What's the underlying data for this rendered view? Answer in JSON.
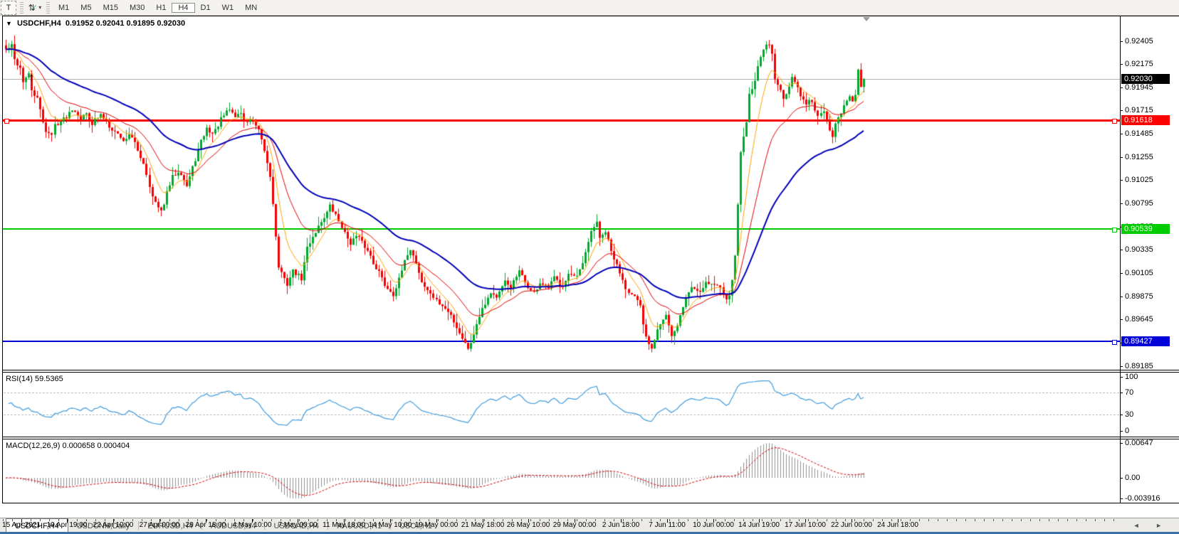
{
  "toolbar": {
    "text_tool_label": "T",
    "indicator_dropdown_icon": "arrows-with-check-icon",
    "timeframes": [
      "M1",
      "M5",
      "M15",
      "M30",
      "H1",
      "H4",
      "D1",
      "W1",
      "MN"
    ],
    "active_timeframe": "H4"
  },
  "chart": {
    "title_symbol": "USDCHF,H4",
    "ohlc": {
      "open": "0.91952",
      "high": "0.92041",
      "low": "0.91895",
      "close": "0.92030"
    },
    "current_price": "0.92030",
    "current_price_value": 0.9203,
    "hlines": [
      {
        "name": "resistance",
        "label": "0.91618",
        "value": 0.91618,
        "color": "#ff0000",
        "thickness": 3,
        "anchors": "left-right"
      },
      {
        "name": "pivot",
        "label": "0.90539",
        "value": 0.90539,
        "color": "#00cc00",
        "thickness": 2,
        "anchors": "right"
      },
      {
        "name": "support",
        "label": "0.89427",
        "value": 0.89427,
        "color": "#0000d8",
        "thickness": 2,
        "anchors": "right"
      }
    ],
    "annotations": [
      {
        "glyph": "↑",
        "bar": 10,
        "price": 0.9203
      }
    ]
  },
  "price_axis": {
    "ticks": [
      "0.92405",
      "0.92175",
      "0.91945",
      "0.91715",
      "0.91485",
      "0.91255",
      "0.91025",
      "0.90795",
      "0.90565",
      "0.90335",
      "0.90105",
      "0.89875",
      "0.89645",
      "0.89415",
      "0.89185"
    ]
  },
  "rsi_panel": {
    "label": "RSI(14) 59.5365",
    "value": "59.5365",
    "axis_ticks": [
      "100",
      "70",
      "30",
      "0"
    ],
    "levels": [
      70,
      30
    ],
    "line_color": "#3e9bde"
  },
  "macd_panel": {
    "label": "MACD(12,26,9) 0.000658 0.000404",
    "main_value": "0.000658",
    "signal_value": "0.000404",
    "axis_ticks": [
      "0.00647",
      "0.00",
      "-0.003916"
    ],
    "histogram_color": "#8f8f8f",
    "signal_color": "#d40000"
  },
  "time_axis": {
    "labels": [
      "15 Apr 2021",
      "19 Apr 19:00",
      "22 Apr 10:00",
      "27 Apr 00:00",
      "29 Apr 18:00",
      "4 May 10:00",
      "7 May 00:00",
      "11 May 18:00",
      "14 May 10:00",
      "19 May 00:00",
      "21 May 18:00",
      "26 May 10:00",
      "29 May 00:00",
      "2 Jun 18:00",
      "7 Jun 11:00",
      "10 Jun 00:00",
      "14 Jun 19:00",
      "17 Jun 10:00",
      "22 Jun 00:00",
      "24 Jun 18:00"
    ]
  },
  "tabs": {
    "items": [
      "USDCHF,H4",
      "USDCNH,Daily",
      "EURUSD,H4",
      "AUDUSD,H4",
      "USDCAD,H4",
      "XAUUSD,H1",
      "USOil,H1"
    ],
    "active": "USDCHF,H4",
    "scroll_left_icon": "◄",
    "scroll_right_icon": "►"
  },
  "chart_data": {
    "type": "candlestick",
    "symbol": "USDCHF",
    "timeframe": "H4",
    "bars": 300,
    "up_color": "#00a82d",
    "down_color": "#f40000",
    "last_bar": {
      "open": 0.91952,
      "high": 0.92041,
      "low": 0.91895,
      "close": 0.9203
    },
    "price_top_tick": 0.92405,
    "price_bottom_tick": 0.89185,
    "moving_averages": [
      {
        "period": 8,
        "type": "ema",
        "color": "#ffa200",
        "width": 1
      },
      {
        "period": 21,
        "type": "ema",
        "color": "#e00000",
        "width": 1
      },
      {
        "period": 50,
        "type": "ema",
        "color": "#0000b8",
        "width": 2
      }
    ],
    "indicators": {
      "rsi_period": 14,
      "macd": [
        12,
        26,
        9
      ]
    },
    "close_path": [
      [
        0,
        0.9232
      ],
      [
        2,
        0.9236
      ],
      [
        3,
        0.9222
      ],
      [
        5,
        0.9214
      ],
      [
        6,
        0.9201
      ],
      [
        8,
        0.9207
      ],
      [
        9,
        0.9192
      ],
      [
        11,
        0.9183
      ],
      [
        13,
        0.9161
      ],
      [
        14,
        0.9152
      ],
      [
        16,
        0.9147
      ],
      [
        17,
        0.9158
      ],
      [
        19,
        0.9161
      ],
      [
        21,
        0.9166
      ],
      [
        23,
        0.9174
      ],
      [
        25,
        0.9169
      ],
      [
        26,
        0.9164
      ],
      [
        28,
        0.9169
      ],
      [
        30,
        0.9159
      ],
      [
        31,
        0.9162
      ],
      [
        33,
        0.9167
      ],
      [
        35,
        0.9162
      ],
      [
        36,
        0.9157
      ],
      [
        38,
        0.9151
      ],
      [
        40,
        0.9146
      ],
      [
        41,
        0.9141
      ],
      [
        43,
        0.9149
      ],
      [
        45,
        0.9139
      ],
      [
        46,
        0.9132
      ],
      [
        48,
        0.912
      ],
      [
        50,
        0.9098
      ],
      [
        51,
        0.9086
      ],
      [
        53,
        0.9075
      ],
      [
        54,
        0.9071
      ],
      [
        56,
        0.909
      ],
      [
        58,
        0.9106
      ],
      [
        60,
        0.9112
      ],
      [
        61,
        0.911
      ],
      [
        63,
        0.9097
      ],
      [
        65,
        0.9115
      ],
      [
        67,
        0.9132
      ],
      [
        68,
        0.9141
      ],
      [
        70,
        0.9154
      ],
      [
        72,
        0.9149
      ],
      [
        73,
        0.9152
      ],
      [
        75,
        0.9163
      ],
      [
        77,
        0.917
      ],
      [
        78,
        0.9173
      ],
      [
        80,
        0.9166
      ],
      [
        82,
        0.917
      ],
      [
        83,
        0.916
      ],
      [
        85,
        0.9163
      ],
      [
        87,
        0.9156
      ],
      [
        88,
        0.9151
      ],
      [
        90,
        0.9132
      ],
      [
        92,
        0.9107
      ],
      [
        93,
        0.9081
      ],
      [
        94,
        0.9046
      ],
      [
        95,
        0.9017
      ],
      [
        97,
        0.9004
      ],
      [
        98,
        0.9
      ],
      [
        100,
        0.9013
      ],
      [
        102,
        0.9008
      ],
      [
        103,
        0.9005
      ],
      [
        105,
        0.9036
      ],
      [
        107,
        0.9047
      ],
      [
        108,
        0.9052
      ],
      [
        110,
        0.9062
      ],
      [
        112,
        0.9071
      ],
      [
        113,
        0.9077
      ],
      [
        115,
        0.9068
      ],
      [
        117,
        0.9057
      ],
      [
        118,
        0.905
      ],
      [
        120,
        0.9041
      ],
      [
        122,
        0.9047
      ],
      [
        123,
        0.9045
      ],
      [
        125,
        0.9037
      ],
      [
        127,
        0.9028
      ],
      [
        128,
        0.9021
      ],
      [
        130,
        0.9012
      ],
      [
        132,
        0.8999
      ],
      [
        133,
        0.8996
      ],
      [
        135,
        0.899
      ],
      [
        137,
        0.9004
      ],
      [
        138,
        0.9013
      ],
      [
        140,
        0.903
      ],
      [
        141,
        0.9035
      ],
      [
        143,
        0.9021
      ],
      [
        145,
        0.9002
      ],
      [
        147,
        0.8993
      ],
      [
        148,
        0.8991
      ],
      [
        150,
        0.8983
      ],
      [
        152,
        0.8978
      ],
      [
        153,
        0.8975
      ],
      [
        155,
        0.8969
      ],
      [
        157,
        0.8957
      ],
      [
        158,
        0.8952
      ],
      [
        160,
        0.8941
      ],
      [
        161,
        0.8937
      ],
      [
        163,
        0.8949
      ],
      [
        164,
        0.8961
      ],
      [
        166,
        0.8977
      ],
      [
        168,
        0.8986
      ],
      [
        169,
        0.8992
      ],
      [
        171,
        0.8987
      ],
      [
        173,
        0.8996
      ],
      [
        174,
        0.9002
      ],
      [
        176,
        0.8997
      ],
      [
        178,
        0.9007
      ],
      [
        179,
        0.9012
      ],
      [
        181,
        0.9002
      ],
      [
        183,
        0.8993
      ],
      [
        184,
        0.8991
      ],
      [
        186,
        0.9001
      ],
      [
        188,
        0.8997
      ],
      [
        189,
        0.8996
      ],
      [
        191,
        0.9006
      ],
      [
        193,
        0.9
      ],
      [
        194,
        0.8999
      ],
      [
        196,
        0.901
      ],
      [
        198,
        0.9007
      ],
      [
        199,
        0.9006
      ],
      [
        201,
        0.902
      ],
      [
        203,
        0.904
      ],
      [
        204,
        0.9052
      ],
      [
        206,
        0.9062
      ],
      [
        207,
        0.9044
      ],
      [
        209,
        0.9052
      ],
      [
        211,
        0.9032
      ],
      [
        213,
        0.9018
      ],
      [
        214,
        0.9012
      ],
      [
        216,
        0.8997
      ],
      [
        218,
        0.8989
      ],
      [
        219,
        0.8987
      ],
      [
        221,
        0.8977
      ],
      [
        222,
        0.896
      ],
      [
        223,
        0.8947
      ],
      [
        225,
        0.8937
      ],
      [
        226,
        0.8946
      ],
      [
        227,
        0.8957
      ],
      [
        229,
        0.8965
      ],
      [
        230,
        0.8969
      ],
      [
        232,
        0.8947
      ],
      [
        233,
        0.8952
      ],
      [
        234,
        0.896
      ],
      [
        236,
        0.8977
      ],
      [
        237,
        0.8987
      ],
      [
        239,
        0.8997
      ],
      [
        241,
        0.8994
      ],
      [
        242,
        0.8993
      ],
      [
        244,
        0.9002
      ],
      [
        246,
        0.9
      ],
      [
        247,
        0.8999
      ],
      [
        249,
        0.8997
      ],
      [
        251,
        0.8987
      ],
      [
        252,
        0.899
      ],
      [
        253,
        0.9002
      ],
      [
        254,
        0.903
      ],
      [
        255,
        0.9077
      ],
      [
        256,
        0.9131
      ],
      [
        257,
        0.9146
      ],
      [
        258,
        0.9162
      ],
      [
        259,
        0.9187
      ],
      [
        260,
        0.9195
      ],
      [
        261,
        0.9202
      ],
      [
        262,
        0.9217
      ],
      [
        263,
        0.9224
      ],
      [
        264,
        0.9232
      ],
      [
        265,
        0.9239
      ],
      [
        266,
        0.9235
      ],
      [
        267,
        0.9227
      ],
      [
        268,
        0.9202
      ],
      [
        269,
        0.9196
      ],
      [
        270,
        0.9192
      ],
      [
        271,
        0.9182
      ],
      [
        272,
        0.9188
      ],
      [
        273,
        0.9197
      ],
      [
        274,
        0.9207
      ],
      [
        275,
        0.9202
      ],
      [
        276,
        0.9197
      ],
      [
        277,
        0.9187
      ],
      [
        278,
        0.9182
      ],
      [
        279,
        0.9177
      ],
      [
        280,
        0.9182
      ],
      [
        281,
        0.9178
      ],
      [
        282,
        0.9174
      ],
      [
        283,
        0.9167
      ],
      [
        284,
        0.917
      ],
      [
        285,
        0.9172
      ],
      [
        286,
        0.916
      ],
      [
        287,
        0.9152
      ],
      [
        288,
        0.9147
      ],
      [
        289,
        0.9157
      ],
      [
        290,
        0.9163
      ],
      [
        291,
        0.917
      ],
      [
        292,
        0.9177
      ],
      [
        293,
        0.918
      ],
      [
        294,
        0.9184
      ],
      [
        295,
        0.918
      ],
      [
        296,
        0.9187
      ],
      [
        297,
        0.9211
      ],
      [
        298,
        0.9195
      ],
      [
        299,
        0.9203
      ]
    ]
  }
}
